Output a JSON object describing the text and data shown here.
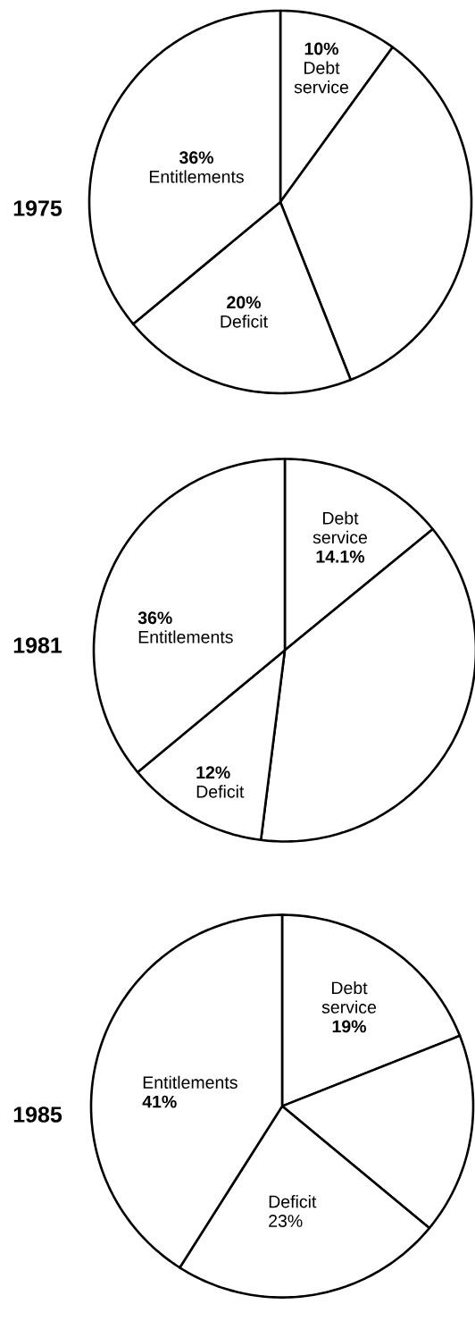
{
  "chart_data": [
    {
      "type": "pie",
      "title": "1975",
      "categories": [
        "Debt service",
        null,
        "Deficit",
        "Entitlements"
      ],
      "values": [
        10,
        34,
        20,
        36
      ],
      "colors": [
        "#ffffff",
        "#ffffff",
        "#ffffff",
        "#ffffff"
      ],
      "value_labels": [
        "10%",
        null,
        "20%",
        "36%"
      ]
    },
    {
      "type": "pie",
      "title": "1981",
      "categories": [
        "Debt service",
        null,
        "Deficit",
        "Entitlements"
      ],
      "values": [
        14.1,
        37.9,
        12,
        36
      ],
      "colors": [
        "#ffffff",
        "#ffffff",
        "#ffffff",
        "#ffffff"
      ],
      "value_labels": [
        "14.1%",
        null,
        "12%",
        "36%"
      ]
    },
    {
      "type": "pie",
      "title": "1985",
      "categories": [
        "Debt service",
        null,
        "Deficit",
        "Entitlements"
      ],
      "values": [
        19,
        17,
        23,
        41
      ],
      "colors": [
        "#ffffff",
        "#ffffff",
        "#ffffff",
        "#ffffff"
      ],
      "value_labels": [
        "19%",
        null,
        "23%",
        "41%"
      ]
    }
  ]
}
